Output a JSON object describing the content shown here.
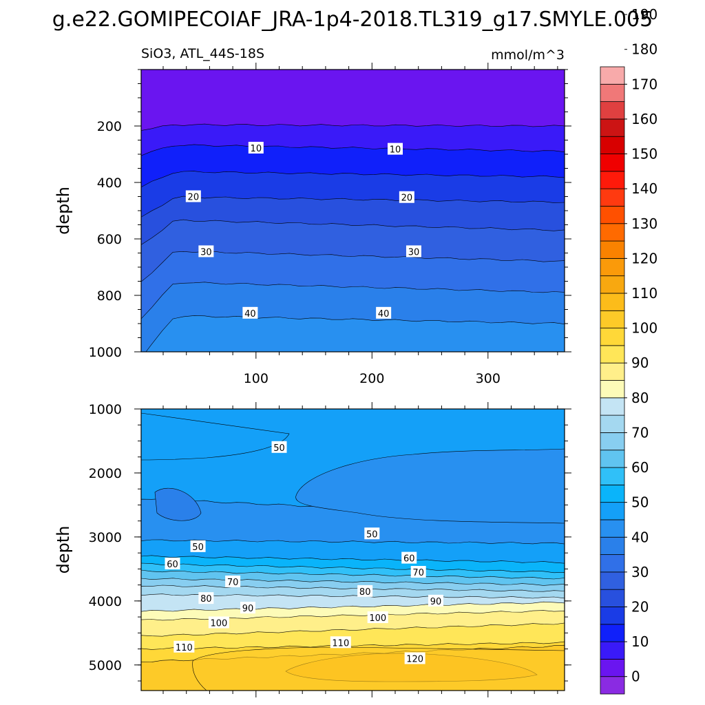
{
  "page_title": "g.e22.GOMIPECOIAF_JRA-1p4-2018.TL319_g17.SMYLE.005",
  "upper_panel": {
    "left_label": "SiO3, ATL_44S-18S",
    "right_label": "mmol/m^3"
  },
  "colors": {
    "levels": [
      "#8a2be2",
      "#6a15f0",
      "#3a1af8",
      "#1020fa",
      "#1a3ce6",
      "#2850de",
      "#3060e0",
      "#3070e8",
      "#2a80ea",
      "#2890f0",
      "#14a0f8",
      "#0ab4fa",
      "#30c0f8",
      "#60c4f0",
      "#88cef0",
      "#a4d8f0",
      "#c4e4f4",
      "#fdfbb8",
      "#ffef8a",
      "#ffe658",
      "#ffd838",
      "#fdca28",
      "#fcbc1a",
      "#f8a810",
      "#fa9a0a",
      "#fa8200",
      "#ff6a00",
      "#ff5000",
      "#ff3a10",
      "#ff1a0a",
      "#f00000",
      "#d80000",
      "#cc1414",
      "#e04040",
      "#f07878",
      "#f8aaaa"
    ],
    "accent_fill_upper_top": "#6a15f0"
  },
  "chart_data": [
    {
      "type": "contour",
      "title": "SiO3, ATL_44S-18S",
      "units": "mmol/m^3",
      "ylabel": "depth",
      "xlabel": "",
      "xlim": [
        1,
        366
      ],
      "ylim": [
        1000,
        0
      ],
      "xticks": [
        100,
        200,
        300
      ],
      "yticks": [
        200,
        400,
        600,
        800,
        1000
      ],
      "contour_levels": [
        0,
        5,
        10,
        15,
        20,
        25,
        30,
        35,
        40,
        45
      ],
      "bands": [
        {
          "color_index": 1,
          "y_left": 0,
          "y_right": 0
        },
        {
          "color_index": 2,
          "y_left": 195,
          "y_right": 200
        },
        {
          "color_index": 3,
          "y_left": 265,
          "y_right": 290
        },
        {
          "color_index": 4,
          "y_left": 360,
          "y_right": 380
        },
        {
          "color_index": 5,
          "y_left": 450,
          "y_right": 470
        },
        {
          "color_index": 6,
          "y_left": 530,
          "y_right": 570
        },
        {
          "color_index": 7,
          "y_left": 640,
          "y_right": 680
        },
        {
          "color_index": 8,
          "y_left": 750,
          "y_right": 790
        },
        {
          "color_index": 9,
          "y_left": 870,
          "y_right": 900
        }
      ],
      "contour_labels": [
        {
          "text": "10",
          "x": 100,
          "y": 278
        },
        {
          "text": "10",
          "x": 220,
          "y": 282
        },
        {
          "text": "20",
          "x": 46,
          "y": 450
        },
        {
          "text": "20",
          "x": 230,
          "y": 453
        },
        {
          "text": "30",
          "x": 57,
          "y": 645
        },
        {
          "text": "30",
          "x": 236,
          "y": 645
        },
        {
          "text": "40",
          "x": 95,
          "y": 863
        },
        {
          "text": "40",
          "x": 210,
          "y": 863
        }
      ]
    },
    {
      "type": "contour",
      "title": "",
      "ylabel": "depth",
      "xlabel": "",
      "xlim": [
        1,
        366
      ],
      "ylim": [
        5400,
        1000
      ],
      "yticks": [
        1000,
        2000,
        3000,
        4000,
        5000
      ],
      "contour_levels": [
        45,
        50,
        55,
        60,
        65,
        70,
        75,
        80,
        85,
        90,
        95,
        100,
        105,
        110,
        115,
        120
      ],
      "bands": [
        {
          "color_index": 10,
          "y_left": 1000,
          "y_right": 1000
        },
        {
          "color_index": 9,
          "y_left": 2400,
          "y_right": 2700
        },
        {
          "color_index": 10,
          "y_left": 3050,
          "y_right": 3100
        },
        {
          "color_index": 11,
          "y_left": 3300,
          "y_right": 3400
        },
        {
          "color_index": 12,
          "y_left": 3420,
          "y_right": 3550
        },
        {
          "color_index": 13,
          "y_left": 3530,
          "y_right": 3650
        },
        {
          "color_index": 14,
          "y_left": 3650,
          "y_right": 3750
        },
        {
          "color_index": 15,
          "y_left": 3760,
          "y_right": 3850
        },
        {
          "color_index": 16,
          "y_left": 3900,
          "y_right": 3950
        },
        {
          "color_index": 17,
          "y_left": 4160,
          "y_right": 4020
        },
        {
          "color_index": 18,
          "y_left": 4300,
          "y_right": 4150
        },
        {
          "color_index": 19,
          "y_left": 4550,
          "y_right": 4350
        },
        {
          "color_index": 20,
          "y_left": 4750,
          "y_right": 4650
        },
        {
          "color_index": 21,
          "y_left": 4950,
          "y_right": 4700
        }
      ],
      "contour_labels": [
        {
          "text": "50",
          "x": 120,
          "y": 1600
        },
        {
          "text": "50",
          "x": 50,
          "y": 3150
        },
        {
          "text": "50",
          "x": 200,
          "y": 2950
        },
        {
          "text": "60",
          "x": 28,
          "y": 3420
        },
        {
          "text": "60",
          "x": 232,
          "y": 3330
        },
        {
          "text": "70",
          "x": 80,
          "y": 3700
        },
        {
          "text": "70",
          "x": 240,
          "y": 3550
        },
        {
          "text": "80",
          "x": 57,
          "y": 3960
        },
        {
          "text": "80",
          "x": 194,
          "y": 3850
        },
        {
          "text": "90",
          "x": 93,
          "y": 4110
        },
        {
          "text": "90",
          "x": 255,
          "y": 4000
        },
        {
          "text": "100",
          "x": 68,
          "y": 4340
        },
        {
          "text": "100",
          "x": 205,
          "y": 4260
        },
        {
          "text": "110",
          "x": 38,
          "y": 4720
        },
        {
          "text": "110",
          "x": 173,
          "y": 4650
        },
        {
          "text": "120",
          "x": 237,
          "y": 4900
        }
      ]
    }
  ],
  "colorbar": {
    "tick_labels": [
      "0",
      "10",
      "20",
      "30",
      "40",
      "50",
      "60",
      "70",
      "80",
      "90",
      "100",
      "110",
      "120",
      "130",
      "140",
      "150",
      "160",
      "170",
      "180",
      "190"
    ],
    "tick_values": [
      0,
      10,
      20,
      30,
      40,
      50,
      60,
      70,
      80,
      90,
      100,
      110,
      120,
      130,
      140,
      150,
      160,
      170,
      180,
      190
    ]
  }
}
